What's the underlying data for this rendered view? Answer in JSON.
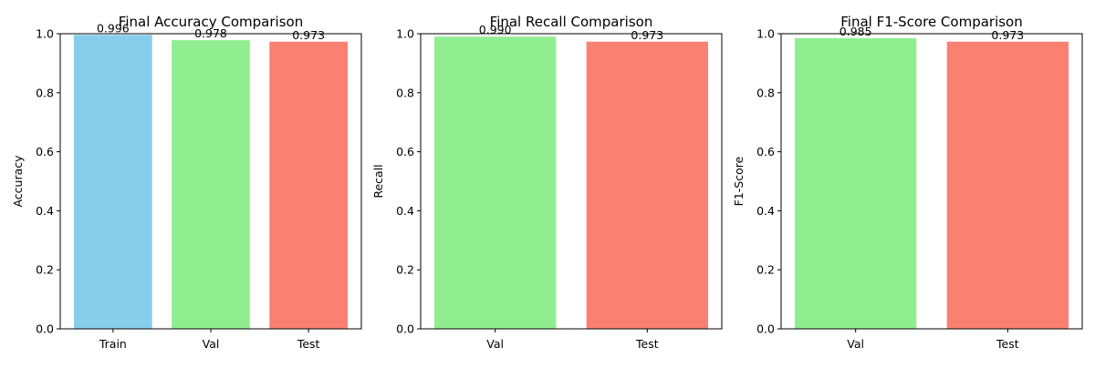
{
  "chart_data": [
    {
      "type": "bar",
      "title": "Final Accuracy Comparison",
      "xlabel": "",
      "ylabel": "Accuracy",
      "ylim": [
        0,
        1.0
      ],
      "yticks": [
        "0.0",
        "0.2",
        "0.4",
        "0.6",
        "0.8",
        "1.0"
      ],
      "categories": [
        "Train",
        "Val",
        "Test"
      ],
      "values": [
        0.996,
        0.978,
        0.973
      ],
      "value_labels": [
        "0.996",
        "0.978",
        "0.973"
      ],
      "colors": [
        "#87ceeb",
        "#90ee90",
        "#fa8072"
      ],
      "grid": false
    },
    {
      "type": "bar",
      "title": "Final Recall Comparison",
      "xlabel": "",
      "ylabel": "Recall",
      "ylim": [
        0,
        1.0
      ],
      "yticks": [
        "0.0",
        "0.2",
        "0.4",
        "0.6",
        "0.8",
        "1.0"
      ],
      "categories": [
        "Val",
        "Test"
      ],
      "values": [
        0.99,
        0.973
      ],
      "value_labels": [
        "0.990",
        "0.973"
      ],
      "colors": [
        "#90ee90",
        "#fa8072"
      ],
      "grid": false
    },
    {
      "type": "bar",
      "title": "Final F1-Score Comparison",
      "xlabel": "",
      "ylabel": "F1-Score",
      "ylim": [
        0,
        1.0
      ],
      "yticks": [
        "0.0",
        "0.2",
        "0.4",
        "0.6",
        "0.8",
        "1.0"
      ],
      "categories": [
        "Val",
        "Test"
      ],
      "values": [
        0.985,
        0.973
      ],
      "value_labels": [
        "0.985",
        "0.973"
      ],
      "colors": [
        "#90ee90",
        "#fa8072"
      ],
      "grid": false
    }
  ]
}
